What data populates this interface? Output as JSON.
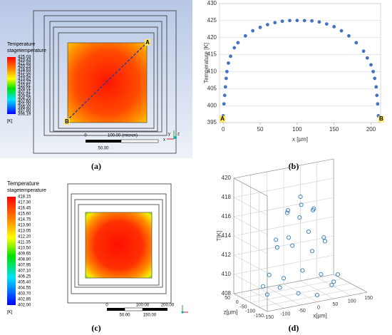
{
  "panel_a": {
    "legend": {
      "title": "Temperature",
      "subtitle": "stagetemperature",
      "unit": "[K]",
      "values": [
        "425.03",
        "423.43",
        "421.83",
        "420.23",
        "418.63",
        "417.02",
        "415.42",
        "413.82",
        "412.22",
        "410.61",
        "409.01",
        "407.41",
        "405.81",
        "404.20",
        "402.60",
        "401.00",
        "399.40",
        "397.80",
        "396.19"
      ]
    },
    "labels": [
      "A",
      "B"
    ],
    "scale": [
      "0",
      "100.00 (micron)",
      "50.00"
    ],
    "triad": [
      "x",
      "y",
      "z"
    ]
  },
  "panel_c": {
    "legend": {
      "title": "Temperature",
      "subtitle": "stagetemperature",
      "unit": "[K]",
      "values": [
        "418.15",
        "417.30",
        "416.45",
        "415.60",
        "414.75",
        "413.90",
        "413.05",
        "412.20",
        "411.35",
        "410.50",
        "409.65",
        "408.80",
        "407.95",
        "407.10",
        "406.25",
        "405.40",
        "404.55",
        "403.70",
        "402.85",
        "402.00"
      ]
    },
    "scale_top": [
      "0",
      "100.00",
      "200.00"
    ],
    "scale_bottom": [
      "50.00",
      "150.00"
    ]
  },
  "captions": [
    "(a)",
    "(b)",
    "(c)",
    "(d)"
  ],
  "chart_data": [
    {
      "type": "scatter",
      "x_label": "x [µm]",
      "y_label": "Temperature [K]",
      "color": "#4472c4",
      "grid": true,
      "annotations": [
        "A",
        "B"
      ],
      "x": [
        0,
        1,
        2,
        3,
        4,
        5,
        7,
        10,
        15,
        20,
        30,
        40,
        50,
        60,
        70,
        80,
        90,
        100,
        110,
        120,
        130,
        140,
        150,
        160,
        170,
        180,
        190,
        195,
        200,
        203,
        205,
        207,
        208,
        209,
        210
      ],
      "values": [
        397,
        400.5,
        403,
        405.5,
        408,
        410,
        412.5,
        414.5,
        417,
        418.5,
        420.5,
        422,
        423,
        423.8,
        424.4,
        424.8,
        425,
        425.03,
        425,
        424.9,
        424.6,
        424,
        423.2,
        422,
        420.5,
        418.5,
        416,
        414,
        412,
        410,
        408,
        405.5,
        403,
        400.5,
        397
      ],
      "xlim": [
        -5,
        213
      ],
      "ylim": [
        395,
        430
      ],
      "xticks": [
        0,
        50,
        100,
        150,
        200
      ],
      "yticks": [
        395,
        400,
        405,
        410,
        415,
        420,
        425,
        430
      ]
    },
    {
      "type": "scatter3d",
      "x_label": "x[µm]",
      "z_label": "z[µm]",
      "y_label": "T[K]",
      "color": "#2e7bb8",
      "x": [
        100,
        87,
        50,
        0,
        -50,
        -87,
        -100,
        -87,
        -50,
        0,
        50,
        87,
        70,
        49,
        0,
        -49,
        -70,
        -49,
        0,
        49,
        40,
        20,
        -20,
        -40,
        -20,
        20,
        0
      ],
      "z": [
        -50,
        0,
        37,
        50,
        37,
        0,
        -50,
        -100,
        -137,
        -150,
        -137,
        -100,
        -50,
        -1,
        20,
        -1,
        -50,
        -99,
        -120,
        -99,
        -50,
        -15,
        -15,
        -50,
        -85,
        -85,
        -50
      ],
      "values": [
        408.5,
        408.9,
        409.2,
        408.6,
        409.4,
        408.8,
        408.5,
        409.6,
        409.1,
        408.7,
        409.3,
        409.8,
        413.3,
        413.6,
        413.1,
        413.4,
        413.2,
        413.7,
        413.0,
        413.5,
        416.5,
        416.7,
        416.4,
        416.6,
        416.3,
        416.8,
        418
      ],
      "xlim": [
        -150,
        150
      ],
      "zlim": [
        -150,
        50
      ],
      "ylim": [
        408,
        420
      ],
      "xticks": [
        -150,
        -100,
        -50,
        0,
        50,
        100,
        150
      ],
      "zticks": [
        -150,
        -100,
        -50,
        0,
        50
      ],
      "yticks": [
        408,
        410,
        412,
        414,
        416,
        418,
        420
      ]
    }
  ]
}
